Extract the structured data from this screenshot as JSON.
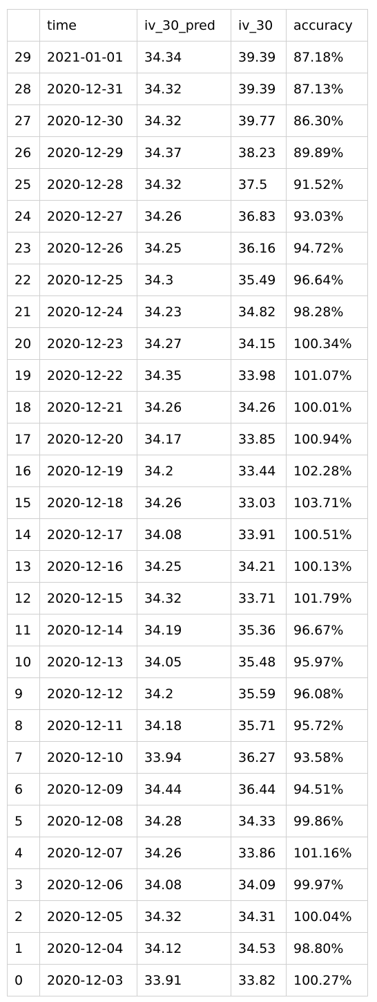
{
  "table": {
    "columns": [
      "",
      "time",
      "iv_30_pred",
      "iv_30",
      "accuracy"
    ],
    "rows": [
      [
        "29",
        "2021-01-01",
        "34.34",
        "39.39",
        "87.18%"
      ],
      [
        "28",
        "2020-12-31",
        "34.32",
        "39.39",
        "87.13%"
      ],
      [
        "27",
        "2020-12-30",
        "34.32",
        "39.77",
        "86.30%"
      ],
      [
        "26",
        "2020-12-29",
        "34.37",
        "38.23",
        "89.89%"
      ],
      [
        "25",
        "2020-12-28",
        "34.32",
        "37.5",
        "91.52%"
      ],
      [
        "24",
        "2020-12-27",
        "34.26",
        "36.83",
        "93.03%"
      ],
      [
        "23",
        "2020-12-26",
        "34.25",
        "36.16",
        "94.72%"
      ],
      [
        "22",
        "2020-12-25",
        "34.3",
        "35.49",
        "96.64%"
      ],
      [
        "21",
        "2020-12-24",
        "34.23",
        "34.82",
        "98.28%"
      ],
      [
        "20",
        "2020-12-23",
        "34.27",
        "34.15",
        "100.34%"
      ],
      [
        "19",
        "2020-12-22",
        "34.35",
        "33.98",
        "101.07%"
      ],
      [
        "18",
        "2020-12-21",
        "34.26",
        "34.26",
        "100.01%"
      ],
      [
        "17",
        "2020-12-20",
        "34.17",
        "33.85",
        "100.94%"
      ],
      [
        "16",
        "2020-12-19",
        "34.2",
        "33.44",
        "102.28%"
      ],
      [
        "15",
        "2020-12-18",
        "34.26",
        "33.03",
        "103.71%"
      ],
      [
        "14",
        "2020-12-17",
        "34.08",
        "33.91",
        "100.51%"
      ],
      [
        "13",
        "2020-12-16",
        "34.25",
        "34.21",
        "100.13%"
      ],
      [
        "12",
        "2020-12-15",
        "34.32",
        "33.71",
        "101.79%"
      ],
      [
        "11",
        "2020-12-14",
        "34.19",
        "35.36",
        "96.67%"
      ],
      [
        "10",
        "2020-12-13",
        "34.05",
        "35.48",
        "95.97%"
      ],
      [
        "9",
        "2020-12-12",
        "34.2",
        "35.59",
        "96.08%"
      ],
      [
        "8",
        "2020-12-11",
        "34.18",
        "35.71",
        "95.72%"
      ],
      [
        "7",
        "2020-12-10",
        "33.94",
        "36.27",
        "93.58%"
      ],
      [
        "6",
        "2020-12-09",
        "34.44",
        "36.44",
        "94.51%"
      ],
      [
        "5",
        "2020-12-08",
        "34.28",
        "34.33",
        "99.86%"
      ],
      [
        "4",
        "2020-12-07",
        "34.26",
        "33.86",
        "101.16%"
      ],
      [
        "3",
        "2020-12-06",
        "34.08",
        "34.09",
        "99.97%"
      ],
      [
        "2",
        "2020-12-05",
        "34.32",
        "34.31",
        "100.04%"
      ],
      [
        "1",
        "2020-12-04",
        "34.12",
        "34.53",
        "98.80%"
      ],
      [
        "0",
        "2020-12-03",
        "33.91",
        "33.82",
        "100.27%"
      ]
    ]
  }
}
